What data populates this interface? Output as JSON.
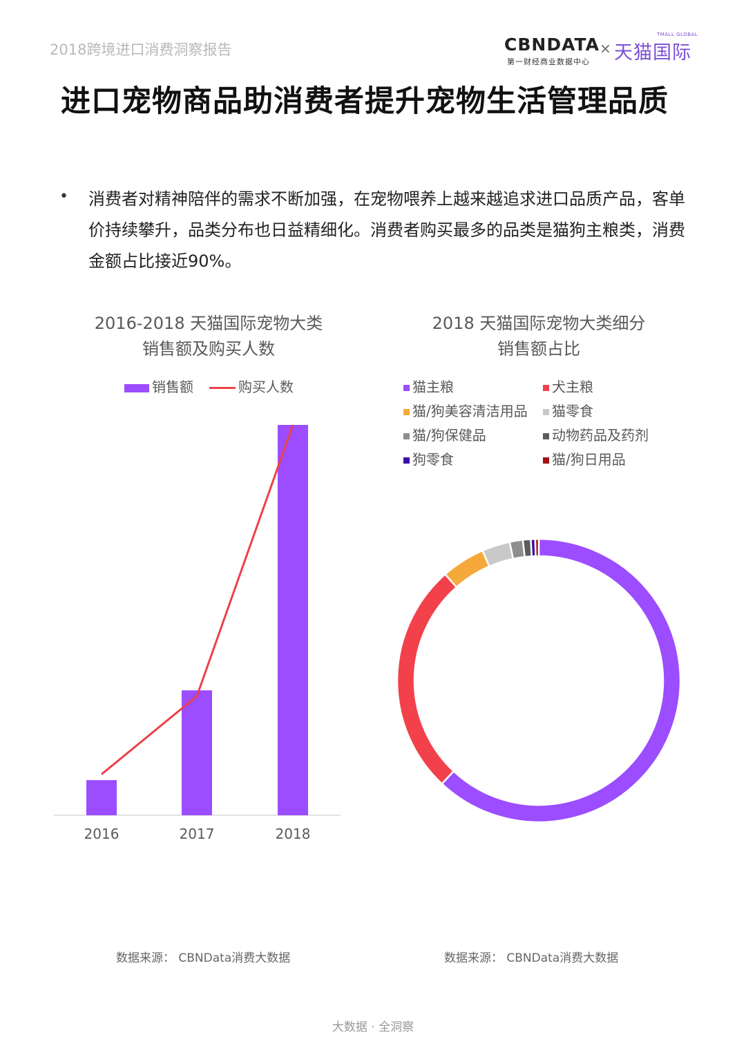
{
  "header": {
    "report_name": "2018跨境进口消费洞察报告",
    "logo": {
      "cbn": "CBNDATA",
      "cbn_sub": "第一财经商业数据中心",
      "cross": "×",
      "tmall_small": "TMALL GLOBAL",
      "tmall": "天猫国际"
    }
  },
  "page_title": "进口宠物商品助消费者提升宠物生活管理品质",
  "bullet": {
    "dot": "•",
    "text": "消费者对精神陪伴的需求不断加强，在宠物喂养上越来越追求进口品质产品，客单价持续攀升，品类分布也日益精细化。消费者购买最多的品类是猫狗主粮类，消费金额占比接近90%。"
  },
  "chart_data": [
    {
      "type": "bar",
      "title_lines": [
        "2016-2018 天猫国际宠物大类",
        "销售额及购买人数"
      ],
      "categories": [
        "2016",
        "2017",
        "2018"
      ],
      "series": [
        {
          "name": "销售额",
          "kind": "bar",
          "color": "#9b4dff",
          "values": [
            9,
            32,
            100
          ]
        },
        {
          "name": "购买人数",
          "kind": "line",
          "color": "#ec4149",
          "values": [
            10.5,
            30.5,
            100
          ]
        }
      ],
      "ylim": [
        0,
        100
      ],
      "grid": false,
      "legend": "top"
    },
    {
      "type": "pie",
      "variant": "donut",
      "title_lines": [
        "2018 天猫国际宠物大类细分",
        "销售额占比"
      ],
      "slices": [
        {
          "label": "猫主粮",
          "value": 62.0,
          "color": "#9b4dff"
        },
        {
          "label": "犬主粮",
          "value": 26.5,
          "color": "#f2414b"
        },
        {
          "label": "猫/狗美容清洁用品",
          "value": 5.0,
          "color": "#f6a93b"
        },
        {
          "label": "猫零食",
          "value": 3.2,
          "color": "#c9c9c9"
        },
        {
          "label": "猫/狗保健品",
          "value": 1.5,
          "color": "#8e8e8e"
        },
        {
          "label": "动物药品及药剂",
          "value": 0.9,
          "color": "#5c5c5c"
        },
        {
          "label": "狗零食",
          "value": 0.5,
          "color": "#3d0ea6"
        },
        {
          "label": "猫/狗日用品",
          "value": 0.4,
          "color": "#a31212"
        }
      ],
      "legend": "top"
    }
  ],
  "sources": [
    "数据来源： CBNData消费大数据",
    "数据来源： CBNData消费大数据"
  ],
  "footer": "大数据 · 全洞察"
}
